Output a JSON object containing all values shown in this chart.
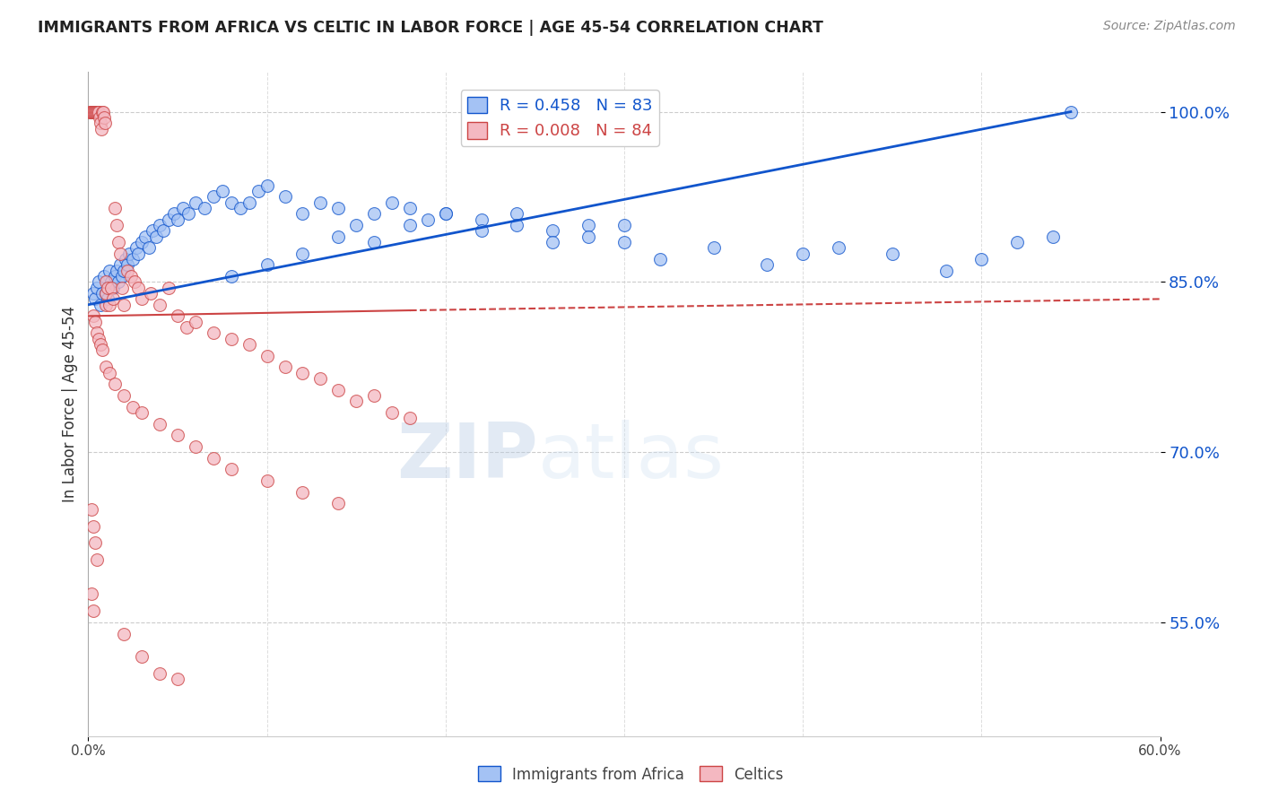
{
  "title": "IMMIGRANTS FROM AFRICA VS CELTIC IN LABOR FORCE | AGE 45-54 CORRELATION CHART",
  "source": "Source: ZipAtlas.com",
  "ylabel": "In Labor Force | Age 45-54",
  "xlim": [
    0.0,
    60.0
  ],
  "ylim": [
    45.0,
    103.5
  ],
  "yticks": [
    55.0,
    70.0,
    85.0,
    100.0
  ],
  "ytick_labels": [
    "55.0%",
    "70.0%",
    "85.0%",
    "100.0%"
  ],
  "africa_R": 0.458,
  "africa_N": 83,
  "celtic_R": 0.008,
  "celtic_N": 84,
  "africa_color": "#a4c2f4",
  "celtic_color": "#f4b8c1",
  "africa_line_color": "#1155cc",
  "celtic_line_color": "#cc4444",
  "legend_africa_label": "Immigrants from Africa",
  "legend_celtic_label": "Celtics",
  "watermark_zip": "ZIP",
  "watermark_atlas": "atlas",
  "africa_x": [
    0.3,
    0.4,
    0.5,
    0.6,
    0.7,
    0.8,
    0.9,
    1.0,
    1.1,
    1.2,
    1.3,
    1.4,
    1.5,
    1.6,
    1.7,
    1.8,
    1.9,
    2.0,
    2.1,
    2.2,
    2.3,
    2.5,
    2.7,
    2.8,
    3.0,
    3.2,
    3.4,
    3.6,
    3.8,
    4.0,
    4.2,
    4.5,
    4.8,
    5.0,
    5.3,
    5.6,
    6.0,
    6.5,
    7.0,
    7.5,
    8.0,
    8.5,
    9.0,
    9.5,
    10.0,
    11.0,
    12.0,
    13.0,
    14.0,
    15.0,
    16.0,
    17.0,
    18.0,
    19.0,
    20.0,
    22.0,
    24.0,
    26.0,
    28.0,
    30.0,
    32.0,
    35.0,
    38.0,
    40.0,
    42.0,
    45.0,
    48.0,
    50.0,
    52.0,
    54.0,
    55.0,
    30.0,
    28.0,
    26.0,
    24.0,
    22.0,
    20.0,
    18.0,
    16.0,
    14.0,
    12.0,
    10.0,
    8.0
  ],
  "africa_y": [
    84.0,
    83.5,
    84.5,
    85.0,
    83.0,
    84.0,
    85.5,
    84.0,
    83.5,
    86.0,
    85.0,
    84.5,
    85.5,
    86.0,
    85.0,
    86.5,
    85.5,
    86.0,
    87.0,
    86.5,
    87.5,
    87.0,
    88.0,
    87.5,
    88.5,
    89.0,
    88.0,
    89.5,
    89.0,
    90.0,
    89.5,
    90.5,
    91.0,
    90.5,
    91.5,
    91.0,
    92.0,
    91.5,
    92.5,
    93.0,
    92.0,
    91.5,
    92.0,
    93.0,
    93.5,
    92.5,
    91.0,
    92.0,
    91.5,
    90.0,
    91.0,
    92.0,
    91.5,
    90.5,
    91.0,
    90.5,
    91.0,
    89.5,
    90.0,
    88.5,
    87.0,
    88.0,
    86.5,
    87.5,
    88.0,
    87.5,
    86.0,
    87.0,
    88.5,
    89.0,
    100.0,
    90.0,
    89.0,
    88.5,
    90.0,
    89.5,
    91.0,
    90.0,
    88.5,
    89.0,
    87.5,
    86.5,
    85.5
  ],
  "celtic_x": [
    0.1,
    0.15,
    0.2,
    0.25,
    0.3,
    0.35,
    0.4,
    0.45,
    0.5,
    0.55,
    0.6,
    0.65,
    0.7,
    0.75,
    0.8,
    0.85,
    0.9,
    0.95,
    1.0,
    1.0,
    1.0,
    1.1,
    1.2,
    1.3,
    1.4,
    1.5,
    1.6,
    1.7,
    1.8,
    1.9,
    2.0,
    2.2,
    2.4,
    2.6,
    2.8,
    3.0,
    3.5,
    4.0,
    4.5,
    5.0,
    5.5,
    6.0,
    7.0,
    8.0,
    9.0,
    10.0,
    11.0,
    12.0,
    13.0,
    14.0,
    15.0,
    16.0,
    17.0,
    18.0,
    0.3,
    0.4,
    0.5,
    0.6,
    0.7,
    0.8,
    1.0,
    1.2,
    1.5,
    2.0,
    2.5,
    3.0,
    4.0,
    5.0,
    6.0,
    7.0,
    8.0,
    10.0,
    12.0,
    14.0,
    0.2,
    0.3,
    0.4,
    0.5,
    0.2,
    0.3,
    2.0,
    3.0,
    4.0,
    5.0
  ],
  "celtic_y": [
    100.0,
    100.0,
    100.0,
    100.0,
    100.0,
    100.0,
    100.0,
    100.0,
    100.0,
    100.0,
    100.0,
    99.5,
    99.0,
    98.5,
    100.0,
    100.0,
    99.5,
    99.0,
    83.0,
    84.0,
    85.0,
    84.5,
    83.0,
    84.5,
    83.5,
    91.5,
    90.0,
    88.5,
    87.5,
    84.5,
    83.0,
    86.0,
    85.5,
    85.0,
    84.5,
    83.5,
    84.0,
    83.0,
    84.5,
    82.0,
    81.0,
    81.5,
    80.5,
    80.0,
    79.5,
    78.5,
    77.5,
    77.0,
    76.5,
    75.5,
    74.5,
    75.0,
    73.5,
    73.0,
    82.0,
    81.5,
    80.5,
    80.0,
    79.5,
    79.0,
    77.5,
    77.0,
    76.0,
    75.0,
    74.0,
    73.5,
    72.5,
    71.5,
    70.5,
    69.5,
    68.5,
    67.5,
    66.5,
    65.5,
    65.0,
    63.5,
    62.0,
    60.5,
    57.5,
    56.0,
    54.0,
    52.0,
    50.5,
    50.0
  ]
}
